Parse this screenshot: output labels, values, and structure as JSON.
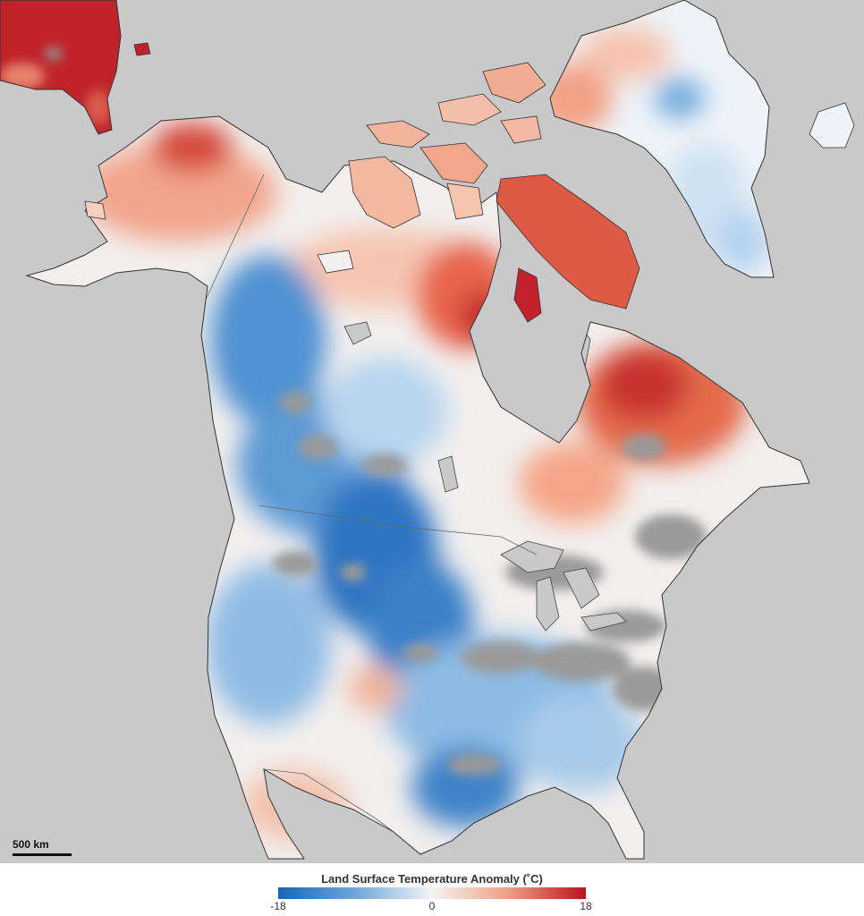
{
  "map": {
    "scale_label": "500 km"
  },
  "legend": {
    "title": "Land Surface Temperature Anomaly (˚C)",
    "min_label": "-18",
    "mid_label": "0",
    "max_label": "18",
    "min_value": -18,
    "max_value": 18,
    "colors": {
      "cold": "#1565b8",
      "neutral": "#f4f4f4",
      "warm": "#b8141e",
      "no_data": "#9a9a9a",
      "water": "#c9c9c9"
    }
  }
}
